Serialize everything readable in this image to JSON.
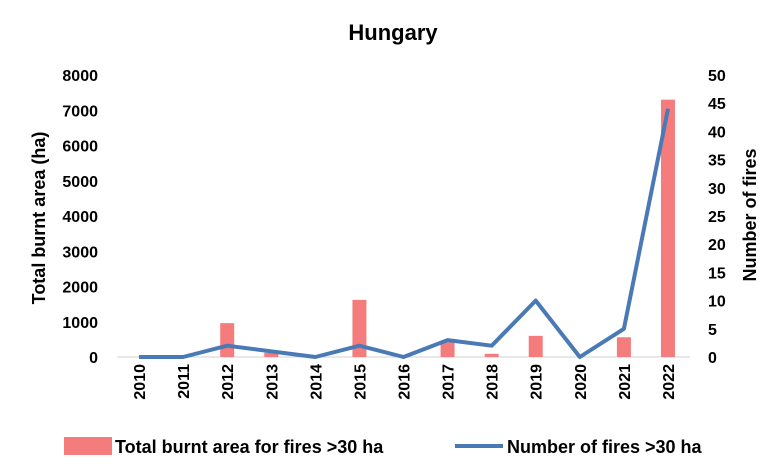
{
  "chart_data": {
    "type": "bar+line",
    "title": "Hungary",
    "categories": [
      "2010",
      "2011",
      "2012",
      "2013",
      "2014",
      "2015",
      "2016",
      "2017",
      "2018",
      "2019",
      "2020",
      "2021",
      "2022"
    ],
    "series": [
      {
        "name": "Total burnt area for fires >30 ha",
        "type": "bar",
        "axis": "left",
        "color": "#f47c7c",
        "values": [
          0,
          0,
          960,
          120,
          0,
          1620,
          0,
          420,
          90,
          600,
          0,
          560,
          7300
        ]
      },
      {
        "name": "Number of fires >30 ha",
        "type": "line",
        "axis": "right",
        "color": "#4a7ab5",
        "values": [
          0,
          0,
          2,
          1,
          0,
          2,
          0,
          3,
          2,
          10,
          0,
          5,
          44
        ]
      }
    ],
    "ylabel_left": "Total burnt area (ha)",
    "ylabel_right": "Number of fires",
    "ylim_left": [
      0,
      8000
    ],
    "ylim_right": [
      0,
      50
    ],
    "yticks_left": [
      "0",
      "1000",
      "2000",
      "3000",
      "4000",
      "5000",
      "6000",
      "7000",
      "8000"
    ],
    "yticks_right": [
      "0",
      "5",
      "10",
      "15",
      "20",
      "25",
      "30",
      "35",
      "40",
      "45",
      "50"
    ],
    "grid": false,
    "legend_position": "bottom"
  }
}
